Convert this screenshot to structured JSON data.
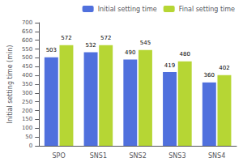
{
  "chart_data": {
    "type": "bar",
    "categories": [
      "SPO",
      "SNS1",
      "SNS2",
      "SNS3",
      "SNS4"
    ],
    "series": [
      {
        "name": "Initial setting time",
        "values": [
          503,
          532,
          490,
          419,
          360
        ]
      },
      {
        "name": "Final setting time",
        "values": [
          572,
          572,
          545,
          480,
          402
        ]
      }
    ],
    "ylabel": "Initial setting time (min)",
    "ylim": [
      0,
      700
    ],
    "yticks": [
      0,
      50,
      100,
      150,
      200,
      250,
      300,
      350,
      400,
      450,
      500,
      550,
      600,
      650,
      700
    ],
    "data_labels": true,
    "legend": "upper right",
    "grid": false
  }
}
